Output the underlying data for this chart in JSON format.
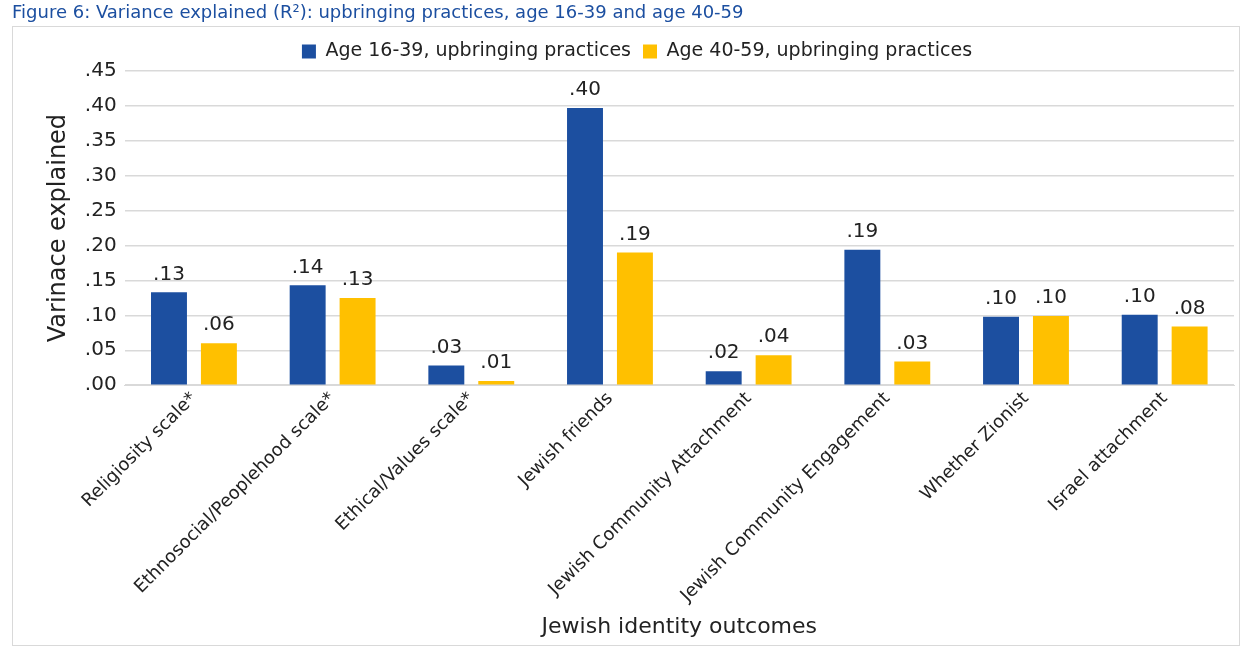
{
  "chart_data": {
    "type": "bar",
    "title": "Figure 6: Variance explained (R²): upbringing practices, age 16-39 and age 40-59",
    "xlabel": "Jewish identity outcomes",
    "ylabel": "Varinace explained",
    "categories": [
      "Religiosity scale*",
      "Ethnosocial/Peoplehood scale*",
      "Ethical/Values scale*",
      "Jewish friends",
      "Jewish Community Attachment",
      "Jewish Community Engagement",
      "Whether Zionist",
      "Israel attachment"
    ],
    "series": [
      {
        "name": "Age 16-39, upbringing practices",
        "color": "#1c4fa0",
        "values": [
          0.133,
          0.143,
          0.028,
          0.397,
          0.02,
          0.194,
          0.098,
          0.101
        ],
        "value_labels": [
          ".13",
          ".14",
          ".03",
          ".40",
          ".02",
          ".19",
          ".10",
          ".10"
        ]
      },
      {
        "name": "Age 40-59, upbringing practices",
        "color": "#ffc000",
        "values": [
          0.06,
          0.125,
          0.006,
          0.19,
          0.043,
          0.034,
          0.099,
          0.084
        ],
        "value_labels": [
          ".06",
          ".13",
          ".01",
          ".19",
          ".04",
          ".03",
          ".10",
          ".08"
        ]
      }
    ],
    "ylim": [
      0,
      0.45
    ],
    "yticks": [
      {
        "value": 0,
        "label": ".00"
      },
      {
        "value": 0.05,
        "label": ".05"
      },
      {
        "value": 0.1,
        "label": ".10"
      },
      {
        "value": 0.15,
        "label": ".15"
      },
      {
        "value": 0.2,
        "label": ".20"
      },
      {
        "value": 0.25,
        "label": ".25"
      },
      {
        "value": 0.3,
        "label": ".30"
      },
      {
        "value": 0.35,
        "label": ".35"
      },
      {
        "value": 0.4,
        "label": ".40"
      },
      {
        "value": 0.45,
        "label": ".45"
      }
    ],
    "grid": "y",
    "legend": "top"
  }
}
